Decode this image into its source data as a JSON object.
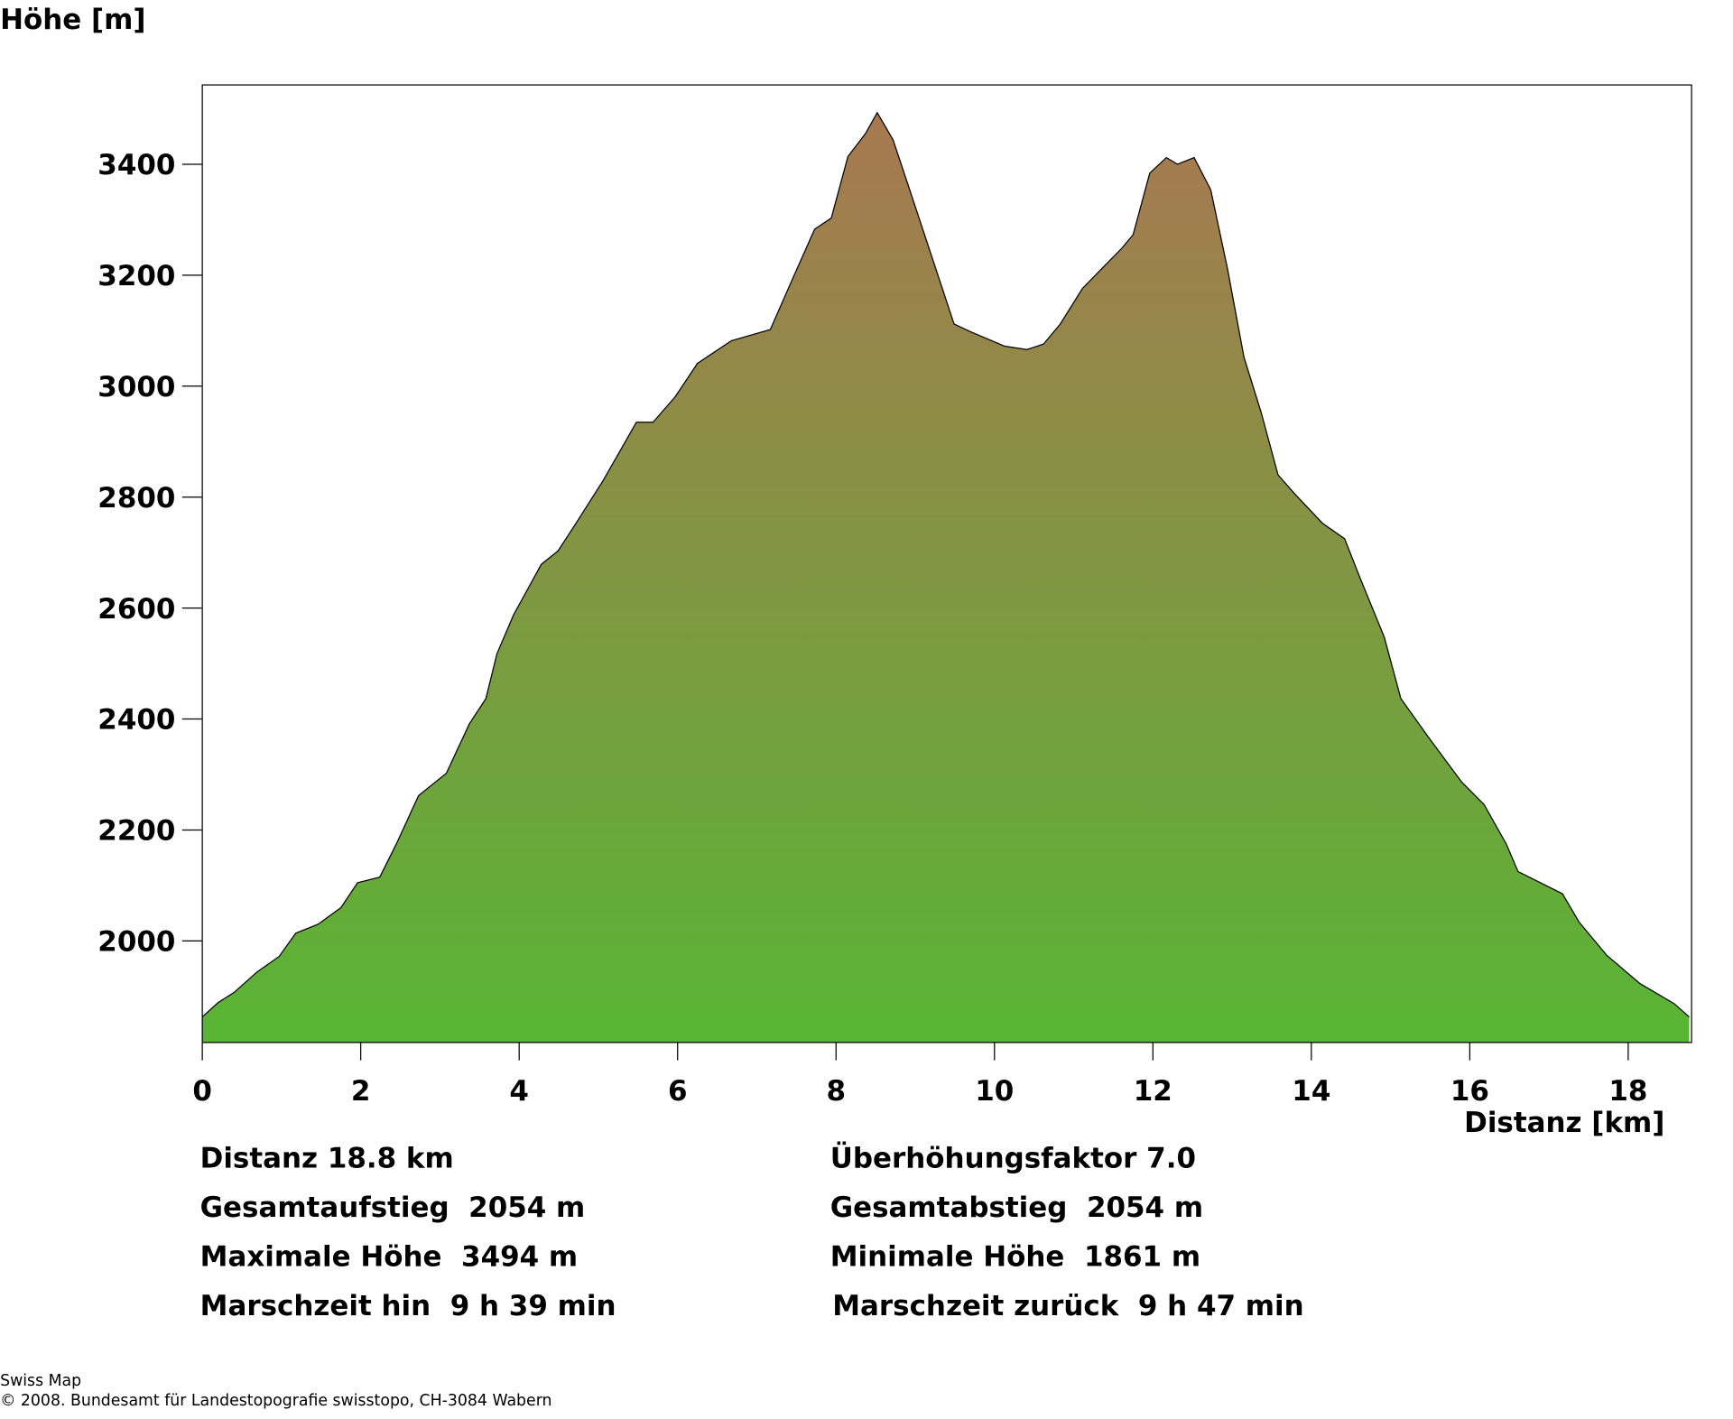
{
  "chart_data": {
    "type": "area",
    "y_label": "Höhe [m]",
    "x_label": "Distanz [km]",
    "x": [
      0,
      0.2,
      0.4,
      0.69,
      0.97,
      1.18,
      1.46,
      1.75,
      1.96,
      2.24,
      2.45,
      2.73,
      3.08,
      3.37,
      3.58,
      3.72,
      3.93,
      4.28,
      4.49,
      4.7,
      5.06,
      5.34,
      5.48,
      5.69,
      5.97,
      6.25,
      6.68,
      7.17,
      7.45,
      7.73,
      7.94,
      8.15,
      8.37,
      8.52,
      8.72,
      8.93,
      9.21,
      9.49,
      9.7,
      10.13,
      10.41,
      10.62,
      10.83,
      11.11,
      11.39,
      11.61,
      11.75,
      11.96,
      12.17,
      12.31,
      12.52,
      12.73,
      12.94,
      13.15,
      13.37,
      13.58,
      13.79,
      14.14,
      14.42,
      14.63,
      14.92,
      15.13,
      15.48,
      15.9,
      16.18,
      16.46,
      16.61,
      16.89,
      17.17,
      17.38,
      17.73,
      18.15,
      18.58,
      18.77
    ],
    "values": [
      1863,
      1889,
      1907,
      1944,
      1972,
      2014,
      2030,
      2060,
      2105,
      2115,
      2175,
      2262,
      2302,
      2391,
      2437,
      2518,
      2588,
      2679,
      2703,
      2749,
      2830,
      2900,
      2935,
      2935,
      2981,
      3041,
      3082,
      3102,
      3193,
      3283,
      3303,
      3414,
      3455,
      3493,
      3444,
      3354,
      3233,
      3112,
      3098,
      3072,
      3066,
      3076,
      3112,
      3176,
      3217,
      3249,
      3273,
      3384,
      3412,
      3400,
      3412,
      3354,
      3213,
      3052,
      2951,
      2840,
      2806,
      2753,
      2725,
      2649,
      2548,
      2437,
      2367,
      2286,
      2246,
      2175,
      2125,
      2105,
      2085,
      2034,
      1974,
      1923,
      1887,
      1863
    ],
    "xlim": [
      0,
      18.8
    ],
    "ylim": [
      1817,
      3543
    ],
    "xticks": [
      0,
      2,
      4,
      6,
      8,
      10,
      12,
      14,
      16,
      18
    ],
    "yticks": [
      2000,
      2200,
      2400,
      2600,
      2800,
      3000,
      3200,
      3400
    ],
    "gradient": [
      "#a87850",
      "#58b534"
    ]
  },
  "stats": [
    [
      "Distanz 18.8 km",
      "Überhöhungsfaktor 7.0"
    ],
    [
      "Gesamtaufstieg  2054 m",
      "Gesamtabstieg  2054 m"
    ],
    [
      "Maximale Höhe  3494 m",
      "Minimale Höhe  1861 m"
    ],
    [
      "Marschzeit hin  9 h 39 min",
      "Marschzeit zurück  9 h 47 min"
    ]
  ],
  "footer": [
    "Swiss Map",
    "© 2008. Bundesamt für Landestopografie swisstopo, CH-3084 Wabern"
  ]
}
